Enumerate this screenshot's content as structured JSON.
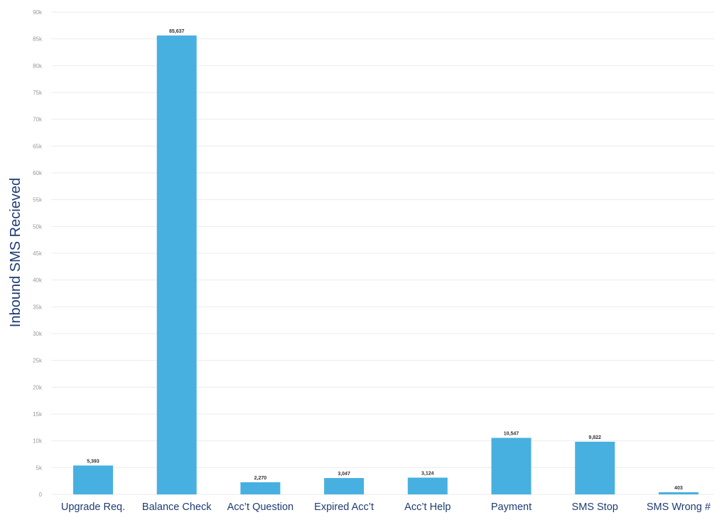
{
  "chart_data": {
    "type": "bar",
    "title": "",
    "xlabel": "",
    "ylabel": "Inbound SMS Recieved",
    "categories": [
      "Upgrade Req.",
      "Balance Check",
      "Acc’t Question",
      "Expired Acc’t",
      "Acc’t Help",
      "Payment",
      "SMS Stop",
      "SMS Wrong #"
    ],
    "values": [
      5393,
      85637,
      2270,
      3047,
      3124,
      10547,
      9822,
      403
    ],
    "data_labels": [
      "5,393",
      "85,637",
      "2,270",
      "3,047",
      "3,124",
      "10,547",
      "9,822",
      "403"
    ],
    "ylim": [
      0,
      90000
    ],
    "y_ticks": [
      0,
      5000,
      10000,
      15000,
      20000,
      25000,
      30000,
      35000,
      40000,
      45000,
      50000,
      55000,
      60000,
      65000,
      70000,
      75000,
      80000,
      85000,
      90000
    ],
    "y_tick_labels": [
      "0",
      "5k",
      "10k",
      "15k",
      "20k",
      "25k",
      "30k",
      "35k",
      "40k",
      "45k",
      "50k",
      "55k",
      "60k",
      "65k",
      "70k",
      "75k",
      "80k",
      "85k",
      "90k"
    ],
    "grid": true,
    "legend": "none",
    "colors": {
      "bar": "#47b0e0",
      "axis_text": "#1f3b73",
      "tick_text": "#999999",
      "grid": "#ebebeb"
    }
  }
}
